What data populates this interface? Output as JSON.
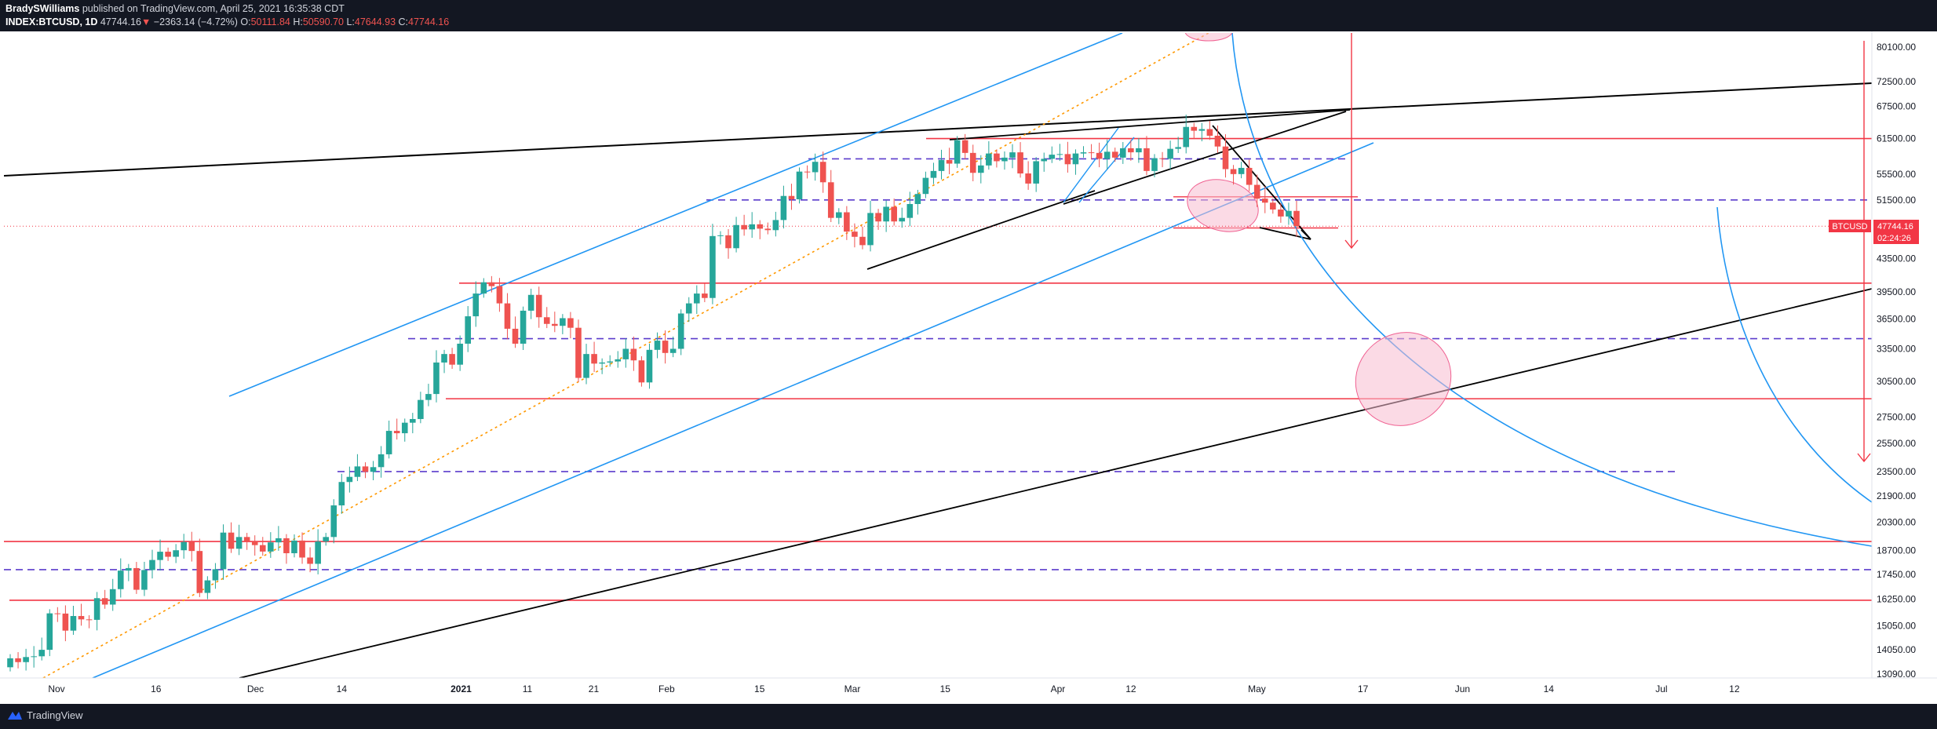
{
  "header": {
    "author": "BradySWilliams",
    "published_text": "published on TradingView.com, April 25, 2021 16:35:38 CDT",
    "symbol": "INDEX:BTCUSD, 1D",
    "last": "47744.16",
    "change": "−2363.14 (−4.72%)",
    "open_label": "O:",
    "open": "50111.84",
    "high_label": "H:",
    "high": "50590.70",
    "low_label": "L:",
    "low": "47644.93",
    "close_label": "C:",
    "close": "47744.16"
  },
  "footer": {
    "brand": "TradingView"
  },
  "price_badge": {
    "symbol": "BTCUSD",
    "price": "47744.16",
    "countdown": "02:24:26"
  },
  "colors": {
    "bull": "#26a69a",
    "bear": "#ef5350",
    "channel_blue": "#2196f3",
    "trend_black": "#000000",
    "support_red": "#f23645",
    "dashed_purple": "#5b3ccc",
    "ellipse_pink": "#f8bbd0",
    "orange_dot": "#ff9800"
  },
  "chart_data": {
    "type": "candlestick",
    "y_scale": "log",
    "ylim": [
      13090,
      80100
    ],
    "y_ticks": [
      "80100.00",
      "72500.00",
      "67500.00",
      "61500.00",
      "55500.00",
      "51500.00",
      "47500.00",
      "43500.00",
      "39500.00",
      "36500.00",
      "33500.00",
      "30500.00",
      "27500.00",
      "25500.00",
      "23500.00",
      "21900.00",
      "20300.00",
      "18700.00",
      "17450.00",
      "16250.00",
      "15050.00",
      "14050.00",
      "13090.00"
    ],
    "x_ticks": [
      "Nov",
      "16",
      "Dec",
      "14",
      "2021",
      "11",
      "21",
      "Feb",
      "15",
      "Mar",
      "15",
      "Apr",
      "12",
      "May",
      "17",
      "Jun",
      "14",
      "Jul",
      "12"
    ],
    "x_tick_dates": [
      "2020-11-01",
      "2020-11-16",
      "2020-12-01",
      "2020-12-14",
      "2021-01-01",
      "2021-01-11",
      "2021-01-21",
      "2021-02-01",
      "2021-02-15",
      "2021-03-01",
      "2021-03-15",
      "2021-04-01",
      "2021-04-12",
      "2021-05-01",
      "2021-05-17",
      "2021-06-01",
      "2021-06-14",
      "2021-07-01",
      "2021-07-12"
    ],
    "closes": [
      13700,
      13550,
      13750,
      13780,
      14040,
      15600,
      15590,
      14840,
      15480,
      15330,
      15310,
      16300,
      16000,
      16730,
      17650,
      17780,
      16700,
      17680,
      18200,
      18640,
      18370,
      18720,
      19170,
      18680,
      16550,
      17160,
      17720,
      19700,
      18800,
      19450,
      19200,
      19000,
      18650,
      19150,
      19380,
      18560,
      19250,
      18330,
      18000,
      19200,
      19450,
      21310,
      22800,
      23140,
      23850,
      23480,
      23800,
      24700,
      26430,
      26250,
      27060,
      27350,
      28900,
      29400,
      32200,
      33000,
      32000,
      34000,
      36800,
      39300,
      40600,
      40150,
      38200,
      35500,
      34000,
      37400,
      39150,
      36700,
      36000,
      35800,
      36600,
      35600,
      30800,
      33000,
      32100,
      32200,
      32300,
      32500,
      33500,
      32400,
      30400,
      33400,
      34300,
      33100,
      33500,
      37100,
      38200,
      39300,
      38800,
      46400,
      46500,
      44800,
      47900,
      47300,
      48000,
      47400,
      47200,
      48600,
      52100,
      51600,
      55900,
      55800,
      57500,
      54200,
      48900,
      49700,
      47000,
      46300,
      45200,
      49600,
      48400,
      50500,
      48400,
      48900,
      50900,
      52400,
      54900,
      56000,
      57800,
      57200,
      61200,
      59000,
      55700,
      56900,
      58900,
      57600,
      58200,
      59100,
      55600,
      54000,
      57600,
      58000,
      58700,
      58800,
      57100,
      58900,
      59100,
      59000,
      58000,
      59200,
      58200,
      59800,
      59100,
      59800,
      56000,
      58100,
      58000,
      59700,
      60000,
      63600,
      62900,
      63200,
      62000,
      60100,
      56300,
      55500,
      56500,
      53800,
      51700,
      51100,
      50100,
      49100,
      49900,
      47744
    ],
    "channel_lines": "ascending blue parallel channel, rising wedge (black), descending arrows to target levels",
    "horizontal_levels": [
      61500,
      51500,
      47500,
      40500,
      34500,
      29000,
      23500,
      19200,
      17700,
      16200
    ]
  }
}
